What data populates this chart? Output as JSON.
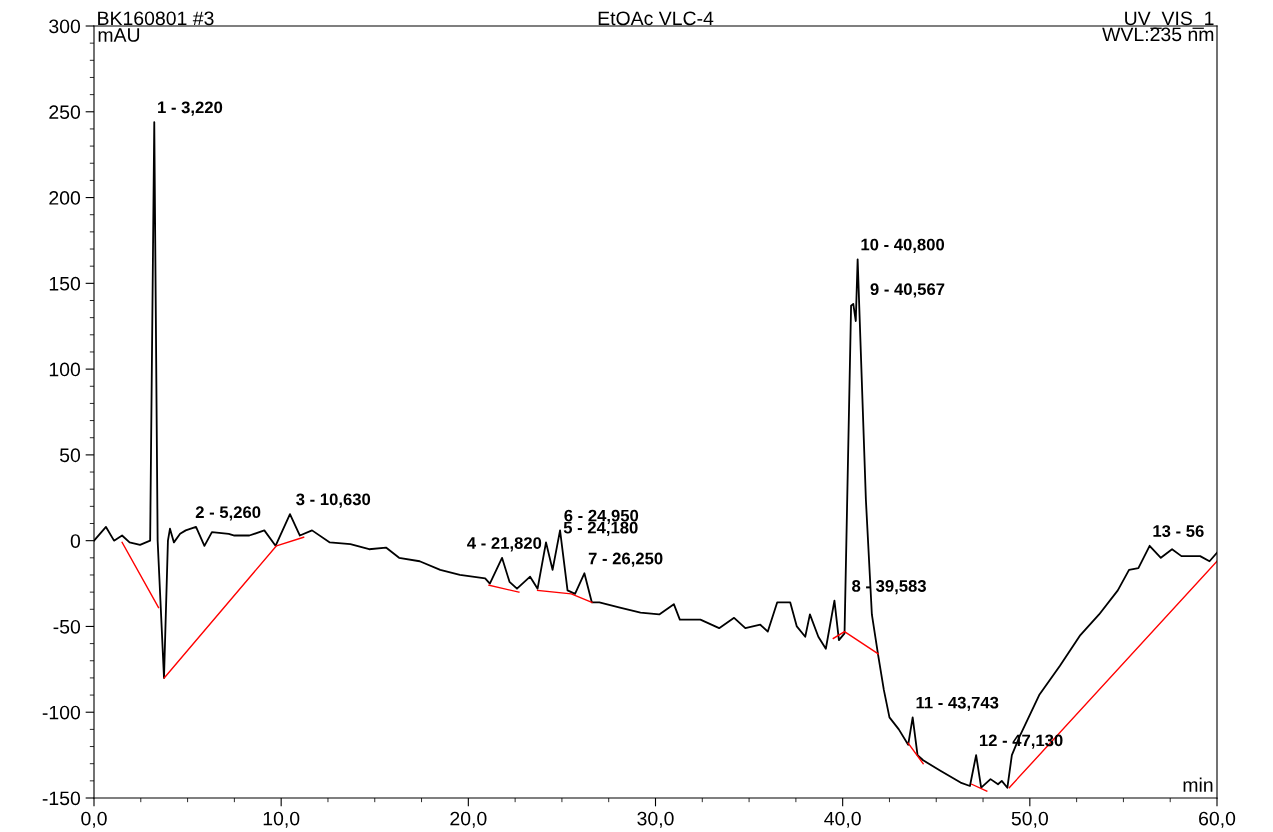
{
  "chart_data": {
    "type": "line",
    "title": "EtOAc VLC-4",
    "xlabel": "min",
    "ylabel": "mAU",
    "xlim": [
      0,
      60
    ],
    "ylim": [
      -150,
      300
    ],
    "xticks": [
      {
        "value": 0,
        "label": "0,0"
      },
      {
        "value": 10,
        "label": "10,0"
      },
      {
        "value": 20,
        "label": "20,0"
      },
      {
        "value": 30,
        "label": "30,0"
      },
      {
        "value": 40,
        "label": "40,0"
      },
      {
        "value": 50,
        "label": "50,0"
      },
      {
        "value": 60,
        "label": "60,0"
      }
    ],
    "yticks": [
      -150,
      -100,
      -50,
      0,
      50,
      100,
      150,
      200,
      250,
      300
    ],
    "grid": false,
    "legend": false,
    "marker": "none",
    "line_style": "solid",
    "series": [
      {
        "color": "#000000",
        "type": "line",
        "x": [
          0,
          0.64,
          1.07,
          1.5,
          1.9,
          2.46,
          3.0,
          3.22,
          3.4,
          3.55,
          3.74,
          3.95,
          4.06,
          4.27,
          4.6,
          4.9,
          5.45,
          5.9,
          6.3,
          7.2,
          7.5,
          8.3,
          9.1,
          9.7,
          10.47,
          11.0,
          11.65,
          12.6,
          13.7,
          14.7,
          15.6,
          16.3,
          17.4,
          18.5,
          19.55,
          20.9,
          21.15,
          21.8,
          22.2,
          22.6,
          23.3,
          23.7,
          24.15,
          24.5,
          24.9,
          25.3,
          25.7,
          26.2,
          26.6,
          27.0,
          28.1,
          29.2,
          30.2,
          30.98,
          31.3,
          32.4,
          33.4,
          34.2,
          34.8,
          35.6,
          36.0,
          36.5,
          37.2,
          37.55,
          38.0,
          38.25,
          38.7,
          39.1,
          39.56,
          39.8,
          40.1,
          40.45,
          40.567,
          40.7,
          40.8,
          41.24,
          41.56,
          41.9,
          42.2,
          42.5,
          43.0,
          43.5,
          43.74,
          44.0,
          44.3,
          45.2,
          46.3,
          46.8,
          47.13,
          47.4,
          47.9,
          48.3,
          48.5,
          48.8,
          49.04,
          49.5,
          50.5,
          51.6,
          52.7,
          53.7,
          54.7,
          55.3,
          55.8,
          56.4,
          57.0,
          57.6,
          58.1,
          59.1,
          59.6,
          60
        ],
        "values": [
          0,
          8,
          0,
          3,
          -1,
          -2.5,
          0,
          244,
          0,
          -35,
          -80,
          0,
          7,
          -1,
          4,
          6,
          8,
          -3,
          5,
          4,
          3,
          3,
          6,
          -3,
          15.5,
          3,
          6,
          -1,
          -2,
          -5,
          -4,
          -10,
          -12,
          -17,
          -20,
          -22,
          -25,
          -10,
          -24,
          -28,
          -21,
          -28,
          -1,
          -17,
          6,
          -29,
          -31,
          -19,
          -36,
          -36,
          -39,
          -42,
          -43,
          -37,
          -46,
          -46,
          -51,
          -45,
          -51,
          -49,
          -53,
          -36,
          -36,
          -50,
          -56,
          -43,
          -56,
          -63,
          -35,
          -58,
          -54,
          137,
          138,
          128,
          164,
          24,
          -43,
          -67,
          -87,
          -103,
          -110,
          -119,
          -103,
          -125,
          -128,
          -134,
          -141,
          -143,
          -125,
          -144,
          -139,
          -142,
          -140,
          -144,
          -125,
          -113,
          -90,
          -73,
          -55,
          -43,
          -29,
          -17,
          -16,
          -3,
          -10,
          -5,
          -9,
          -9,
          -12,
          -7
        ]
      },
      {
        "color": "#ff0000",
        "type": "line",
        "x": [
          1.5,
          3.45,
          null,
          3.75,
          9.75,
          11.2,
          null,
          21.1,
          22.7,
          null,
          23.7,
          25.5,
          26.6,
          null,
          39.5,
          40.1,
          41.9,
          null,
          43.5,
          44.3,
          null,
          46.9,
          47.7,
          null,
          48.9,
          60
        ],
        "values": [
          -1,
          -39,
          null,
          -80,
          -3,
          2,
          null,
          -26,
          -30,
          null,
          -29,
          -31,
          -36,
          null,
          -57,
          -53,
          -66,
          null,
          -118,
          -130,
          null,
          -142,
          -146,
          null,
          -144,
          -12
        ]
      }
    ],
    "annotations": [
      "BK160801 #3",
      "UV_VIS_1",
      "WVL:235 nm",
      {
        "text": "1 - 3,220",
        "x": 3.22,
        "y": 244
      },
      {
        "text": "2 - 5,260",
        "x": 5.26,
        "y": 8
      },
      {
        "text": "3 - 10,630",
        "x": 10.63,
        "y": 15.5
      },
      {
        "text": "4 - 21,820",
        "x": 21.82,
        "y": -10
      },
      {
        "text": "5 - 24,180",
        "x": 24.18,
        "y": -1
      },
      {
        "text": "6 - 24,950",
        "x": 24.95,
        "y": 6
      },
      {
        "text": "7 - 26,250",
        "x": 26.25,
        "y": -19
      },
      {
        "text": "8 - 39,583",
        "x": 39.583,
        "y": -35
      },
      {
        "text": "9 - 40,567",
        "x": 40.567,
        "y": 138
      },
      {
        "text": "10 - 40,800",
        "x": 40.8,
        "y": 164
      },
      {
        "text": "11 - 43,743",
        "x": 43.743,
        "y": -103
      },
      {
        "text": "12 - 47,130",
        "x": 47.13,
        "y": -125
      },
      {
        "text": "13 - 56",
        "x": 56.4,
        "y": -3
      }
    ]
  }
}
